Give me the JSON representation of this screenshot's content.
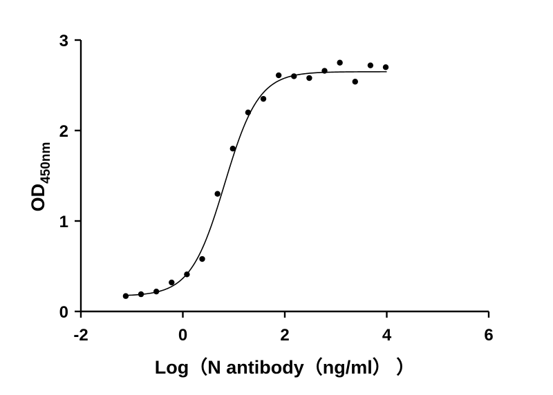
{
  "chart_data": {
    "type": "scatter",
    "title": "",
    "xlabel": "Log（N antibody（ng/ml）  ）",
    "ylabel": {
      "main": "OD",
      "subscript": "450nm"
    },
    "xlim": [
      -2,
      6
    ],
    "ylim": [
      0,
      3
    ],
    "x_ticks": [
      -2,
      0,
      2,
      4,
      6
    ],
    "y_ticks": [
      0,
      1,
      2,
      3
    ],
    "grid": false,
    "legend": "none",
    "series": [
      {
        "marker": "filled-circle",
        "color": "#000000",
        "points": [
          {
            "x": -1.12,
            "y": 0.17
          },
          {
            "x": -0.82,
            "y": 0.19
          },
          {
            "x": -0.52,
            "y": 0.22
          },
          {
            "x": -0.22,
            "y": 0.32
          },
          {
            "x": 0.08,
            "y": 0.41
          },
          {
            "x": 0.38,
            "y": 0.58
          },
          {
            "x": 0.68,
            "y": 1.3
          },
          {
            "x": 0.98,
            "y": 1.8
          },
          {
            "x": 1.28,
            "y": 2.2
          },
          {
            "x": 1.58,
            "y": 2.35
          },
          {
            "x": 1.88,
            "y": 2.61
          },
          {
            "x": 2.18,
            "y": 2.6
          },
          {
            "x": 2.48,
            "y": 2.58
          },
          {
            "x": 2.78,
            "y": 2.66
          },
          {
            "x": 3.08,
            "y": 2.75
          },
          {
            "x": 3.38,
            "y": 2.54
          },
          {
            "x": 3.68,
            "y": 2.72
          },
          {
            "x": 3.98,
            "y": 2.7
          }
        ]
      }
    ],
    "fit_curve": {
      "model": "four-parameter logistic",
      "bottom": 0.17,
      "top": 2.65,
      "log_ec50": 0.82,
      "hill_slope": 1.3,
      "x_range": [
        -1.15,
        4.0
      ]
    }
  }
}
